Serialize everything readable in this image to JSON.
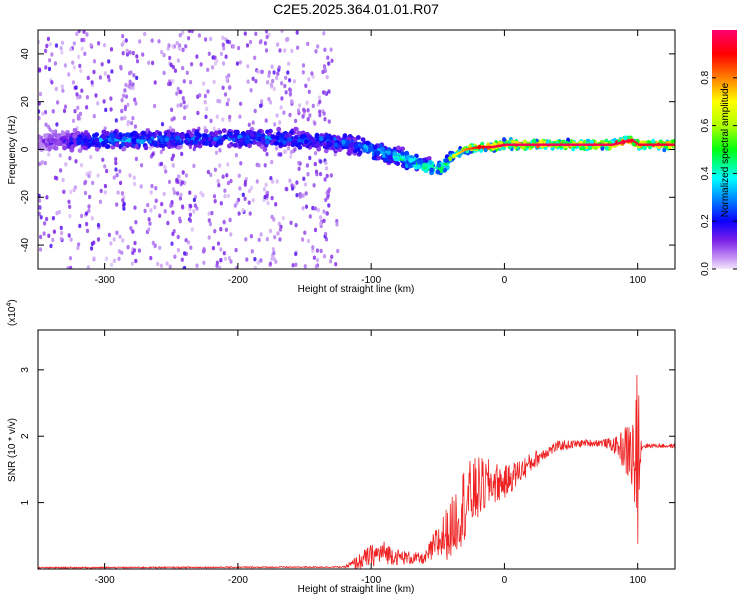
{
  "title": "C2E5.2025.364.01.01.R07",
  "chart_data": [
    {
      "type": "heatmap",
      "name": "spectrogram",
      "xlabel": "Height of straight line (km)",
      "ylabel": "Frequency (Hz)",
      "xlim": [
        -350,
        128
      ],
      "ylim": [
        -50,
        50
      ],
      "xticks": [
        -300,
        -200,
        -100,
        0,
        100
      ],
      "yticks": [
        -40,
        -20,
        0,
        20,
        40
      ],
      "colorbar": {
        "label": "Normalized spectral amplitude",
        "range": [
          0,
          1
        ],
        "ticks": [
          0.0,
          0.2,
          0.4,
          0.6,
          0.8
        ],
        "tick_labels": [
          "0.0",
          "0.2",
          "0.4",
          "0.6",
          "0.8"
        ]
      },
      "ridge": {
        "x": [
          -350,
          -300,
          -250,
          -200,
          -150,
          -120,
          -100,
          -80,
          -60,
          -45,
          -40,
          -30,
          -20,
          -10,
          0,
          20,
          50,
          80,
          95,
          100,
          128
        ],
        "y": [
          3,
          4,
          4,
          5,
          4,
          3,
          0,
          -3,
          -7,
          -8,
          -3,
          0,
          1,
          1,
          2,
          2,
          2,
          2,
          4,
          2,
          2
        ],
        "amplitude": [
          0.1,
          0.35,
          0.3,
          0.3,
          0.32,
          0.3,
          0.38,
          0.45,
          0.5,
          0.5,
          0.6,
          0.75,
          0.85,
          0.9,
          0.92,
          0.93,
          0.93,
          0.92,
          0.9,
          0.9,
          0.9
        ]
      }
    },
    {
      "type": "line",
      "name": "snr",
      "xlabel": "Height of straight line (km)",
      "ylabel": "SNR (10 * v/v)",
      "scale_label": "(x10",
      "scale_exp": "4",
      "scale_close": ")",
      "xlim": [
        -350,
        128
      ],
      "ylim": [
        0,
        3.6
      ],
      "xticks": [
        -300,
        -200,
        -100,
        0,
        100
      ],
      "yticks": [
        1,
        2,
        3
      ],
      "color": "#ee2222",
      "envelope": {
        "x": [
          -350,
          -120,
          -110,
          -100,
          -90,
          -80,
          -60,
          -50,
          -40,
          -30,
          -20,
          -10,
          0,
          10,
          20,
          30,
          40,
          60,
          75,
          85,
          95,
          100,
          103,
          110,
          128
        ],
        "y": [
          0.02,
          0.03,
          0.1,
          0.2,
          0.25,
          0.18,
          0.15,
          0.4,
          0.6,
          1.0,
          1.2,
          1.3,
          1.3,
          1.45,
          1.6,
          1.75,
          1.85,
          1.9,
          1.9,
          1.85,
          1.75,
          1.5,
          1.85,
          1.86,
          1.85
        ],
        "noise": [
          0.01,
          0.01,
          0.12,
          0.17,
          0.18,
          0.12,
          0.08,
          0.3,
          0.45,
          0.6,
          0.5,
          0.35,
          0.25,
          0.2,
          0.15,
          0.1,
          0.08,
          0.05,
          0.06,
          0.15,
          0.55,
          1.2,
          0.05,
          0.03,
          0.03
        ]
      }
    }
  ]
}
